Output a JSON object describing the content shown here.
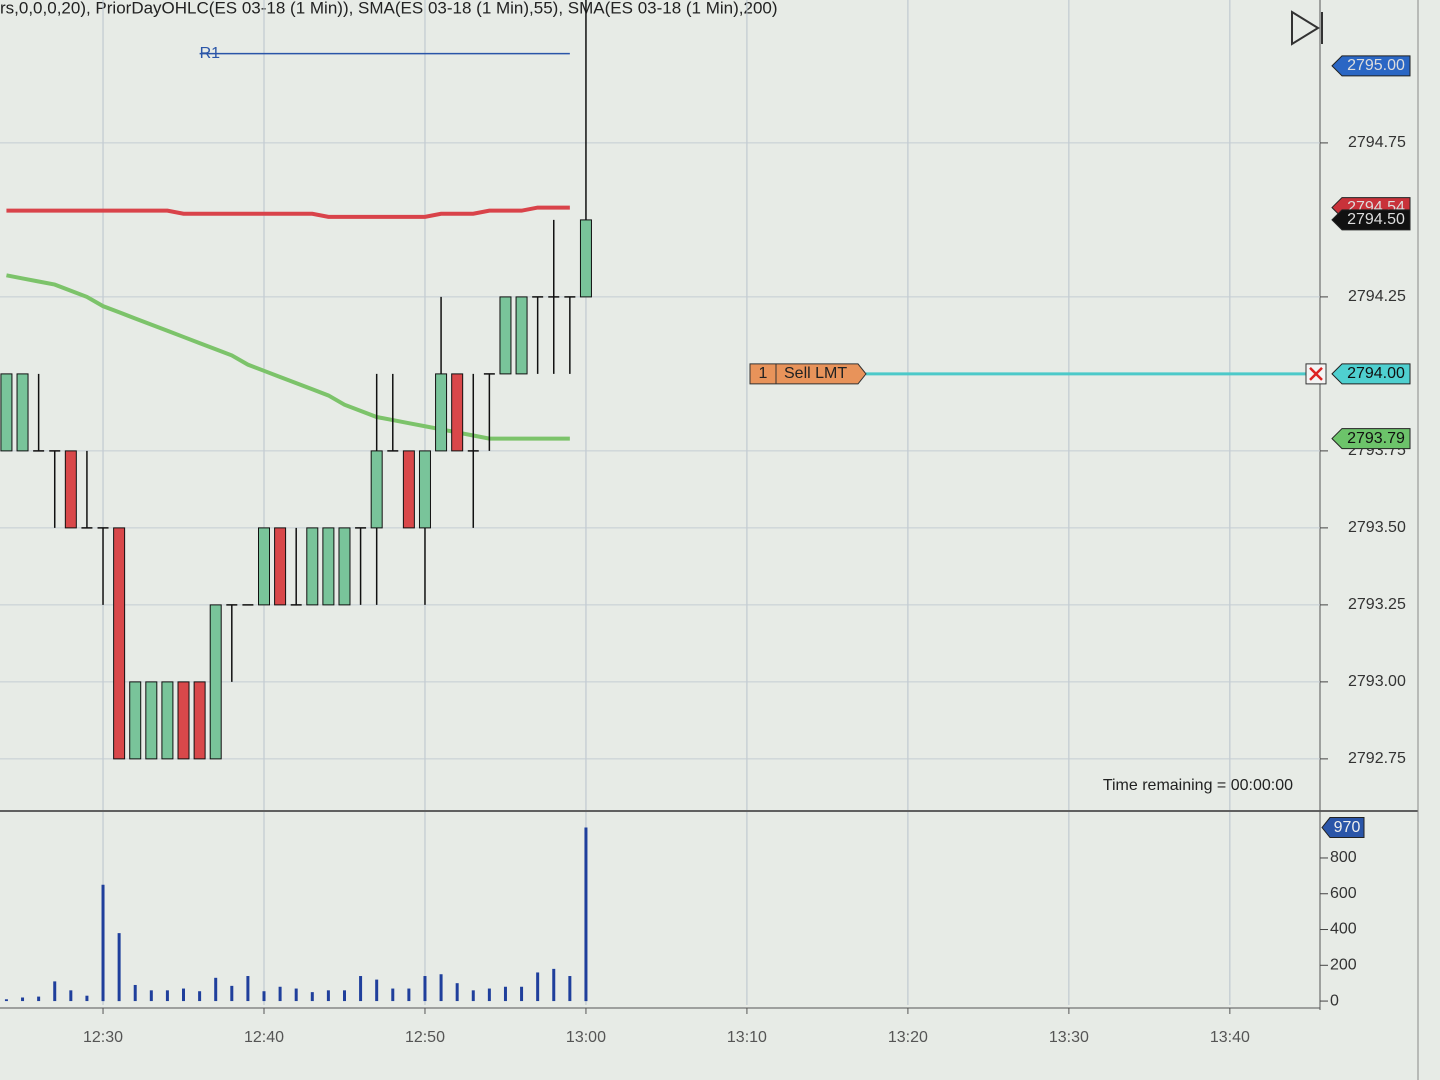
{
  "chart_data": {
    "type": "candlestick",
    "title": "rs,0,0,0,20), PriorDayOHLC(ES 03-18 (1 Min)), SMA(ES 03-18 (1 Min),55), SMA(ES 03-18 (1 Min),200)",
    "ylim": [
      2792.584,
      2795.214
    ],
    "yticks": [
      2794.75,
      2794.25,
      2793.75,
      {
        "value": 2793.5,
        "label": "2793.50"
      },
      2793.25,
      {
        "value": 2793,
        "label": "2793.00"
      },
      2792.75
    ],
    "xlim": [
      -0.4,
      81.6
    ],
    "xticks": [
      {
        "value": 6,
        "label": "12:30"
      },
      {
        "value": 16,
        "label": "12:40"
      },
      {
        "value": 26,
        "label": "12:50"
      },
      {
        "value": 36,
        "label": "13:00"
      },
      {
        "value": 46,
        "label": "13:10"
      },
      {
        "value": 56,
        "label": "13:20"
      },
      {
        "value": 66,
        "label": "13:30"
      },
      {
        "value": 76,
        "label": "13:40"
      }
    ],
    "grid": true,
    "up_color": "#79c49a",
    "down_color": "#d9484a",
    "open": [
      2793.75,
      2793.75,
      2793.75,
      2793.75,
      2793.75,
      2793.5,
      2793.5,
      2793.5,
      2792.75,
      2792.75,
      2792.75,
      2793,
      2793,
      2792.75,
      2793.25,
      2793.25,
      2793.25,
      2793.5,
      2793.25,
      2793.25,
      2793.25,
      2793.25,
      2793.5,
      2793.5,
      2793.75,
      2793.75,
      2793.5,
      2793.75,
      2794,
      2793.75,
      2794,
      2794,
      2794,
      2794.25,
      2794.25,
      2794.25,
      2794.25
    ],
    "high": [
      2794,
      2794,
      2794,
      2793.75,
      2793.75,
      2793.75,
      2793.5,
      2793.5,
      2793,
      2793,
      2793,
      2793,
      2793,
      2793.25,
      2793.25,
      2793.25,
      2793.5,
      2793.5,
      2793.5,
      2793.5,
      2793.5,
      2793.5,
      2793.5,
      2794,
      2794,
      2793.75,
      2793.75,
      2794.25,
      2794,
      2794,
      2794,
      2794.25,
      2794.25,
      2794.25,
      2794.5,
      2794.25,
      2795.25
    ],
    "low": [
      2793.75,
      2793.75,
      2793.75,
      2793.5,
      2793.5,
      2793.5,
      2793.25,
      2792.75,
      2792.75,
      2792.75,
      2792.75,
      2792.75,
      2792.75,
      2792.75,
      2793,
      2793.25,
      2793.25,
      2793.25,
      2793.25,
      2793.25,
      2793.25,
      2793.25,
      2793.25,
      2793.25,
      2793.75,
      2793.5,
      2793.25,
      2793.75,
      2793.75,
      2793.5,
      2793.75,
      2794,
      2794,
      2794,
      2794,
      2794,
      2794.25
    ],
    "close": [
      2794,
      2794,
      2793.75,
      2793.75,
      2793.5,
      2793.5,
      2793.5,
      2792.75,
      2793,
      2793,
      2793,
      2792.75,
      2792.75,
      2793.25,
      2793.25,
      2793.25,
      2793.5,
      2793.25,
      2793.25,
      2793.5,
      2793.5,
      2793.5,
      2793.5,
      2793.75,
      2793.75,
      2793.5,
      2793.75,
      2794,
      2793.75,
      2793.75,
      2794,
      2794.25,
      2794.25,
      2794.25,
      2794.25,
      2794.25,
      2794.5
    ],
    "indicators": [
      {
        "name": "SMA(ES 03-18 (1 Min),200)",
        "color": "#d9434a",
        "values": [
          2794.53,
          2794.53,
          2794.53,
          2794.53,
          2794.53,
          2794.53,
          2794.53,
          2794.53,
          2794.53,
          2794.53,
          2794.53,
          2794.52,
          2794.52,
          2794.52,
          2794.52,
          2794.52,
          2794.52,
          2794.52,
          2794.52,
          2794.52,
          2794.51,
          2794.51,
          2794.51,
          2794.51,
          2794.51,
          2794.51,
          2794.51,
          2794.52,
          2794.52,
          2794.52,
          2794.53,
          2794.53,
          2794.53,
          2794.54,
          2794.54,
          2794.54,
          null
        ]
      },
      {
        "name": "SMA(ES 03-18 (1 Min),55)",
        "color": "#7cc36a",
        "values": [
          2794.32,
          2794.31,
          2794.3,
          2794.29,
          2794.27,
          2794.25,
          2794.22,
          2794.2,
          2794.18,
          2794.16,
          2794.14,
          2794.12,
          2794.1,
          2794.08,
          2794.06,
          2794.03,
          2794.01,
          2793.99,
          2793.97,
          2793.95,
          2793.93,
          2793.9,
          2793.88,
          2793.86,
          2793.85,
          2793.84,
          2793.83,
          2793.82,
          2793.81,
          2793.8,
          2793.79,
          2793.79,
          2793.79,
          2793.79,
          2793.79,
          2793.79,
          null
        ]
      }
    ],
    "r1": {
      "label": "R1",
      "value": 2795.04,
      "color": "#2a55a8"
    },
    "price_markers": [
      {
        "value": 2795,
        "label": "2795.00",
        "color": "#2a66c4"
      },
      {
        "value": 2794.54,
        "label": "2794.54",
        "color": "#c8323a"
      },
      {
        "value": 2794.5,
        "label": "2794.50",
        "color": "#111111"
      },
      {
        "value": 2794,
        "label": "2794.00",
        "color": "#4fd0d0"
      },
      {
        "value": 2793.79,
        "label": "2793.79",
        "color": "#6cc36a"
      }
    ],
    "order": {
      "quantity": 1,
      "type_label": "Sell LMT",
      "price": 2794,
      "color": "#e8935a",
      "line_color": "#4cc9c9"
    },
    "status": "Time remaining = 00:00:00",
    "volume": {
      "color": "#1f3f9c",
      "values": [
        10,
        20,
        25,
        110,
        60,
        30,
        650,
        380,
        90,
        60,
        60,
        70,
        55,
        130,
        85,
        140,
        55,
        80,
        70,
        50,
        60,
        60,
        140,
        120,
        70,
        70,
        140,
        150,
        100,
        60,
        70,
        80,
        80,
        160,
        180,
        140,
        970
      ],
      "ylim": [
        -22,
        1057
      ],
      "yticks": [
        0,
        200,
        400,
        600,
        800
      ],
      "last_marker": {
        "value": 970,
        "color": "#2a55a8"
      }
    }
  }
}
